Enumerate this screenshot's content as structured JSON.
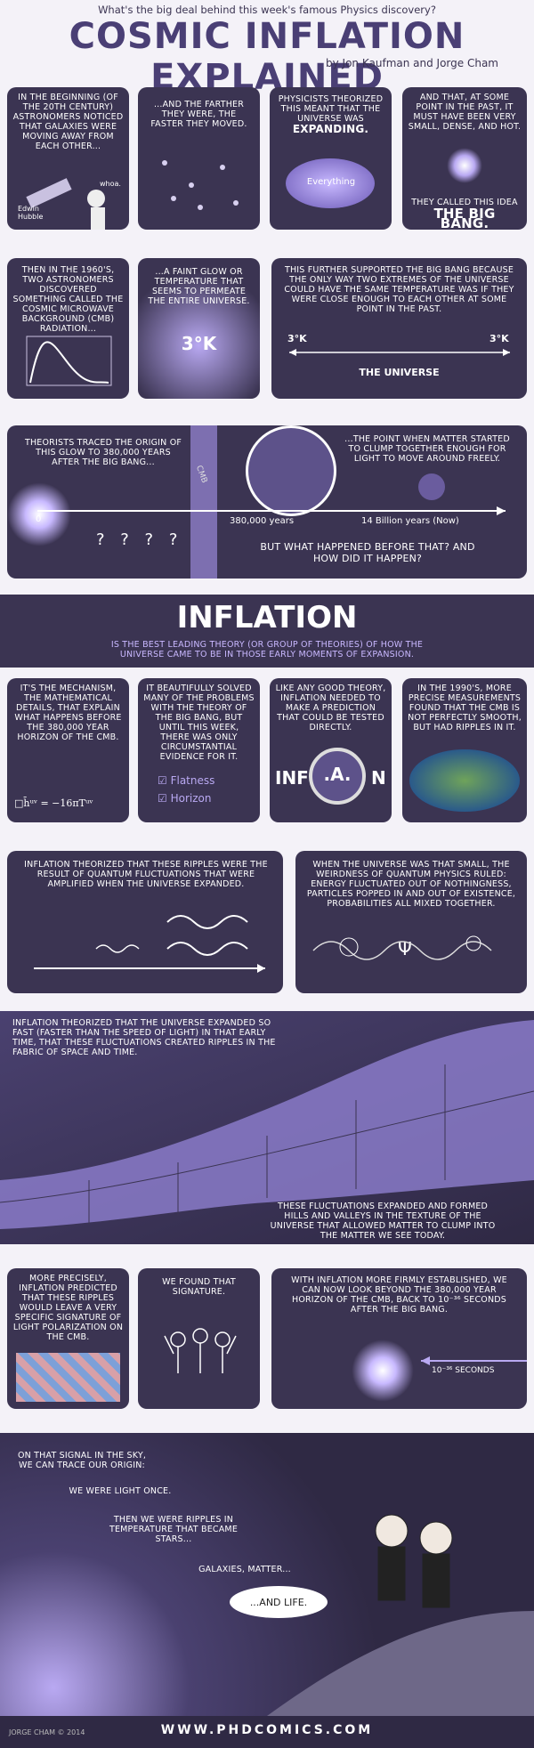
{
  "header": {
    "question": "What's the big deal behind this week's famous Physics discovery?",
    "title": "COSMIC INFLATION EXPLAINED",
    "byline": "by Jon Kaufman and Jorge Cham"
  },
  "row1": {
    "p1": {
      "text": "In the beginning (of the 20th century) astronomers noticed that galaxies were moving away from each other...",
      "whoa": "whoa.",
      "name": "Edwin Hubble"
    },
    "p2": {
      "text": "...and the farther they were, the faster they moved."
    },
    "p3": {
      "text": "Physicists theorized this meant that the universe was",
      "emph": "expanding.",
      "label": "Everything"
    },
    "p4": {
      "text": "And that, at some point in the past, it must have been very small, dense, and hot.",
      "text2": "They called this idea",
      "emph": "THE BIG BANG."
    }
  },
  "row2": {
    "p1": {
      "text": "Then in the 1960's, two astronomers discovered something called the cosmic microwave background (CMB) radiation..."
    },
    "p2": {
      "text": "...a faint glow or temperature that seems to permeate the entire universe.",
      "temp": "3°K"
    },
    "p3": {
      "text": "This further supported the big bang because the only way two extremes of the universe could have the same temperature was if they were close enough to each other at some point in the past.",
      "left": "3°K",
      "right": "3°K",
      "label": "THE UNIVERSE"
    }
  },
  "row3": {
    "left": "Theorists traced the origin of this glow to 380,000 years after the big bang...",
    "right": "...the point when matter started to clump together enough for light to move around freely.",
    "cmb": "CMB",
    "zero": "0",
    "t1": "380,000 years",
    "t2": "14 Billion years (Now)",
    "q": "But WHAT HAPPENED BEFORE THAT? and HOW DID IT HAPPEN?",
    "marks": "? ? ? ?"
  },
  "inflation": {
    "title": "INFLATION",
    "sub": "is the best leading theory (or group of theories) of how the universe came to be in those early moments of expansion."
  },
  "row4": {
    "p1": {
      "text": "It's the mechanism, the mathematical details, that explain what happens before the 380,000 year horizon of the CMB.",
      "eq": "□h̄ᵘᵛ = −16πTᵘᵛ"
    },
    "p2": {
      "text": "It beautifully solved many of the problems with the theory of the big bang, but until this week, there was only circumstantial evidence for it.",
      "c1": "Flatness",
      "c2": "Horizon"
    },
    "p3": {
      "text": "Like any good theory, inflation needed to make a prediction that could be tested directly.",
      "word_l": "INF",
      "word_a": ".A.",
      "word_r": "N"
    },
    "p4": {
      "text": "In the 1990's, more precise measurements found that the CMB is not perfectly smooth, but had ripples in it."
    }
  },
  "row5": {
    "p1": {
      "text": "Inflation theorized that these ripples were the result of quantum fluctuations that were amplified when the universe expanded."
    },
    "p2": {
      "text": "When the universe was that small, the weirdness of quantum physics ruled: energy fluctuated out of nothingness, particles popped in and out of existence, probabilities all mixed together.",
      "psi": "Ψ"
    }
  },
  "row6": {
    "top": "Inflation theorized that the universe expanded so fast (faster than the speed of light) in that early time, that these fluctuations created ripples in the fabric of space and time.",
    "bottom": "These fluctuations expanded and formed hills and valleys in the texture of the universe that allowed matter to clump into the matter we see today."
  },
  "row7": {
    "p1": {
      "text": "More precisely, inflation predicted that these ripples would leave a very specific signature of light polarization on the CMB."
    },
    "p2": {
      "text": "We found that signature."
    },
    "p3": {
      "text": "With inflation more firmly established, we can now look beyond the 380,000 year horizon of the CMB, back to 10⁻³⁶ seconds after the big bang.",
      "label": "10⁻³⁶ SECONDS"
    }
  },
  "final": {
    "t1": "On that signal in the sky, we can trace our origin:",
    "t2": "We were light once.",
    "t3": "Then we were ripples in temperature that became stars...",
    "t4": "galaxies, matter...",
    "t5": "...and life."
  },
  "footer": {
    "copyright": "JORGE CHAM © 2014",
    "url": "WWW.PHDCOMICS.COM"
  },
  "colors": {
    "panel": "#3b3452",
    "title": "#4a3f75",
    "glow": "#b9a9f2"
  }
}
